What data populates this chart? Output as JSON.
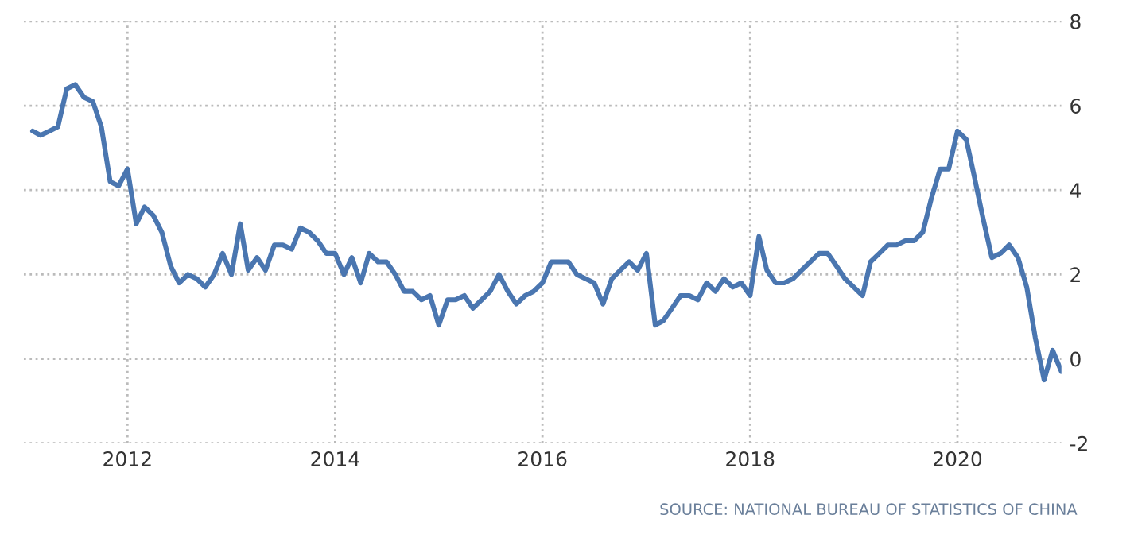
{
  "chart_data": {
    "type": "line",
    "x": [
      "2011-02",
      "2011-03",
      "2011-04",
      "2011-05",
      "2011-06",
      "2011-07",
      "2011-08",
      "2011-09",
      "2011-10",
      "2011-11",
      "2011-12",
      "2012-01",
      "2012-02",
      "2012-03",
      "2012-04",
      "2012-05",
      "2012-06",
      "2012-07",
      "2012-08",
      "2012-09",
      "2012-10",
      "2012-11",
      "2012-12",
      "2013-01",
      "2013-02",
      "2013-03",
      "2013-04",
      "2013-05",
      "2013-06",
      "2013-07",
      "2013-08",
      "2013-09",
      "2013-10",
      "2013-11",
      "2013-12",
      "2014-01",
      "2014-02",
      "2014-03",
      "2014-04",
      "2014-05",
      "2014-06",
      "2014-07",
      "2014-08",
      "2014-09",
      "2014-10",
      "2014-11",
      "2014-12",
      "2015-01",
      "2015-02",
      "2015-03",
      "2015-04",
      "2015-05",
      "2015-06",
      "2015-07",
      "2015-08",
      "2015-09",
      "2015-10",
      "2015-11",
      "2015-12",
      "2016-01",
      "2016-02",
      "2016-03",
      "2016-04",
      "2016-05",
      "2016-06",
      "2016-07",
      "2016-08",
      "2016-09",
      "2016-10",
      "2016-11",
      "2016-12",
      "2017-01",
      "2017-02",
      "2017-03",
      "2017-04",
      "2017-05",
      "2017-06",
      "2017-07",
      "2017-08",
      "2017-09",
      "2017-10",
      "2017-11",
      "2017-12",
      "2018-01",
      "2018-02",
      "2018-03",
      "2018-04",
      "2018-05",
      "2018-06",
      "2018-07",
      "2018-08",
      "2018-09",
      "2018-10",
      "2018-11",
      "2018-12",
      "2019-01",
      "2019-02",
      "2019-03",
      "2019-04",
      "2019-05",
      "2019-06",
      "2019-07",
      "2019-08",
      "2019-09",
      "2019-10",
      "2019-11",
      "2019-12",
      "2020-01",
      "2020-02",
      "2020-03",
      "2020-04",
      "2020-05",
      "2020-06",
      "2020-07",
      "2020-08",
      "2020-09",
      "2020-10",
      "2020-11",
      "2020-12",
      "2021-01"
    ],
    "series": [
      {
        "color": "#4a76b0",
        "values": [
          5.4,
          5.3,
          5.4,
          5.5,
          6.4,
          6.5,
          6.2,
          6.1,
          5.5,
          4.2,
          4.1,
          4.5,
          3.2,
          3.6,
          3.4,
          3.0,
          2.2,
          1.8,
          2.0,
          1.9,
          1.7,
          2.0,
          2.5,
          2.0,
          3.2,
          2.1,
          2.4,
          2.1,
          2.7,
          2.7,
          2.6,
          3.1,
          3.0,
          2.8,
          2.5,
          2.5,
          2.0,
          2.4,
          1.8,
          2.5,
          2.3,
          2.3,
          2.0,
          1.6,
          1.6,
          1.4,
          1.5,
          0.8,
          1.4,
          1.4,
          1.5,
          1.2,
          1.4,
          1.6,
          2.0,
          1.6,
          1.3,
          1.5,
          1.6,
          1.8,
          2.3,
          2.3,
          2.3,
          2.0,
          1.9,
          1.8,
          1.3,
          1.9,
          2.1,
          2.3,
          2.1,
          2.5,
          0.8,
          0.9,
          1.2,
          1.5,
          1.5,
          1.4,
          1.8,
          1.6,
          1.9,
          1.7,
          1.8,
          1.5,
          2.9,
          2.1,
          1.8,
          1.8,
          1.9,
          2.1,
          2.3,
          2.5,
          2.5,
          2.2,
          1.9,
          1.7,
          1.5,
          2.3,
          2.5,
          2.7,
          2.7,
          2.8,
          2.8,
          3.0,
          3.8,
          4.5,
          4.5,
          5.4,
          5.2,
          4.3,
          3.3,
          2.4,
          2.5,
          2.7,
          2.4,
          1.7,
          0.5,
          -0.5,
          0.2,
          -0.3
        ]
      }
    ],
    "xlim": [
      "2011-01",
      "2021-01"
    ],
    "xticks": [
      "2012",
      "2014",
      "2016",
      "2018",
      "2020"
    ],
    "ylim": [
      -2,
      8
    ],
    "yticks": [
      -2,
      0,
      2,
      4,
      6,
      8
    ],
    "grid": true,
    "line_style": "solid",
    "marker": "none",
    "annotations": [
      "SOURCE: NATIONAL BUREAU OF STATISTICS OF CHINA"
    ]
  }
}
